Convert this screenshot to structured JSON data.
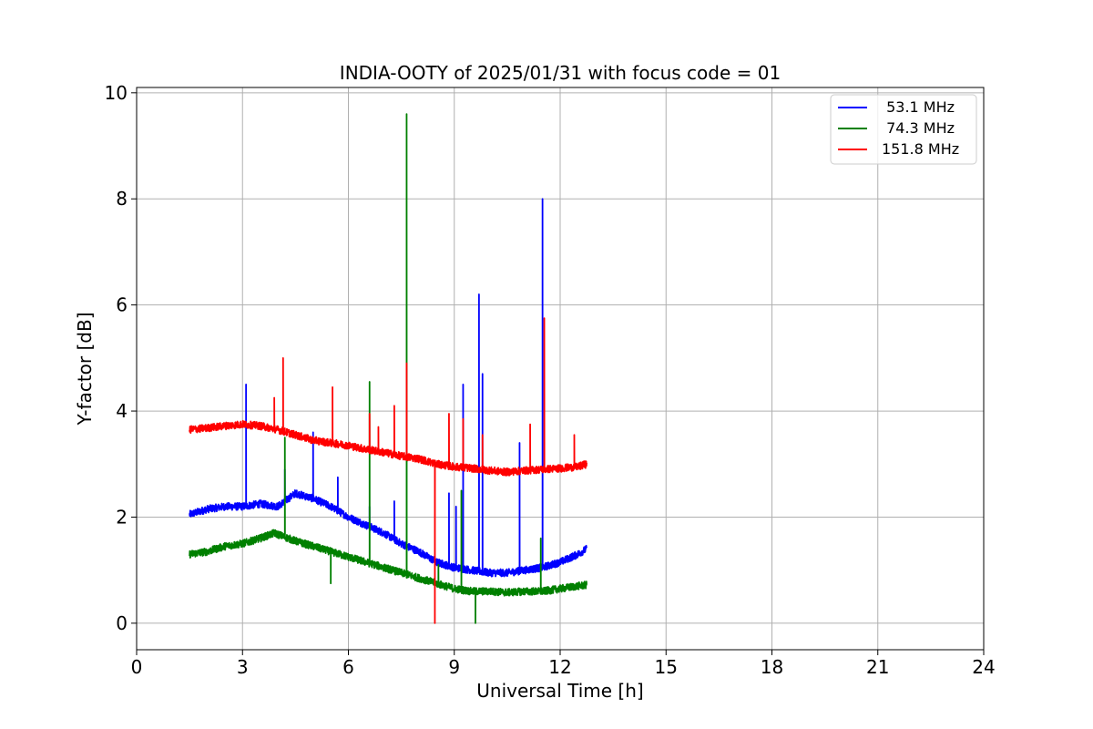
{
  "chart_data": {
    "type": "line",
    "title": "INDIA-OOTY of 2025/01/31 with focus code = 01",
    "xlabel": "Universal Time [h]",
    "ylabel": "Y-factor [dB]",
    "xlim": [
      0,
      24
    ],
    "ylim": [
      -0.5,
      10.1
    ],
    "x_ticks": [
      0,
      3,
      6,
      9,
      12,
      15,
      18,
      21,
      24
    ],
    "y_ticks": [
      0,
      2,
      4,
      6,
      8,
      10
    ],
    "grid": true,
    "legend_position": "top-right",
    "series": [
      {
        "name": " 53.1 MHz",
        "color": "#0000ff",
        "x": [
          1.5,
          2.0,
          2.5,
          3.0,
          3.5,
          4.0,
          4.5,
          5.0,
          5.5,
          6.0,
          6.5,
          7.0,
          7.5,
          8.0,
          8.5,
          9.0,
          9.5,
          10.0,
          10.5,
          11.0,
          11.5,
          12.0,
          12.5,
          12.75
        ],
        "values": [
          2.05,
          2.15,
          2.2,
          2.2,
          2.25,
          2.2,
          2.45,
          2.35,
          2.2,
          2.0,
          1.85,
          1.7,
          1.5,
          1.35,
          1.15,
          1.05,
          1.0,
          0.95,
          0.95,
          1.0,
          1.05,
          1.15,
          1.3,
          1.4
        ],
        "spikes": [
          [
            3.1,
            4.5
          ],
          [
            4.2,
            2.9
          ],
          [
            5.0,
            3.6
          ],
          [
            5.7,
            2.75
          ],
          [
            6.6,
            2.2
          ],
          [
            7.3,
            2.3
          ],
          [
            8.85,
            2.45
          ],
          [
            9.05,
            2.2
          ],
          [
            9.25,
            4.5
          ],
          [
            9.7,
            6.2
          ],
          [
            9.8,
            4.7
          ],
          [
            10.85,
            3.4
          ],
          [
            11.5,
            8.0
          ]
        ]
      },
      {
        "name": " 74.3 MHz",
        "color": "#008000",
        "x": [
          1.5,
          2.0,
          2.5,
          3.0,
          3.5,
          3.9,
          4.5,
          5.0,
          5.5,
          6.0,
          6.5,
          7.0,
          7.5,
          8.0,
          8.5,
          9.0,
          9.5,
          10.0,
          10.5,
          11.0,
          11.5,
          12.0,
          12.5,
          12.75
        ],
        "values": [
          1.3,
          1.35,
          1.45,
          1.5,
          1.6,
          1.7,
          1.55,
          1.45,
          1.35,
          1.25,
          1.15,
          1.05,
          0.95,
          0.85,
          0.75,
          0.65,
          0.6,
          0.6,
          0.58,
          0.6,
          0.6,
          0.65,
          0.7,
          0.72
        ],
        "spikes": [
          [
            4.2,
            3.5
          ],
          [
            5.5,
            0.75
          ],
          [
            6.6,
            4.55
          ],
          [
            7.65,
            9.6
          ],
          [
            8.55,
            1.1
          ],
          [
            9.2,
            2.5
          ],
          [
            9.6,
            0.0
          ],
          [
            11.45,
            1.6
          ]
        ]
      },
      {
        "name": "151.8 MHz",
        "color": "#ff0000",
        "x": [
          1.5,
          2.0,
          2.5,
          3.0,
          3.5,
          4.0,
          4.5,
          5.0,
          5.5,
          6.0,
          6.5,
          7.0,
          7.5,
          8.0,
          8.5,
          9.0,
          9.5,
          10.0,
          10.5,
          11.0,
          11.5,
          12.0,
          12.5,
          12.75
        ],
        "values": [
          3.65,
          3.68,
          3.72,
          3.75,
          3.72,
          3.65,
          3.55,
          3.45,
          3.4,
          3.35,
          3.28,
          3.22,
          3.15,
          3.1,
          3.0,
          2.95,
          2.92,
          2.88,
          2.85,
          2.88,
          2.9,
          2.92,
          2.95,
          3.0
        ],
        "spikes": [
          [
            3.9,
            4.25
          ],
          [
            4.15,
            5.0
          ],
          [
            5.55,
            4.45
          ],
          [
            6.6,
            3.95
          ],
          [
            6.85,
            3.7
          ],
          [
            7.3,
            4.1
          ],
          [
            7.65,
            4.9
          ],
          [
            8.45,
            0.0
          ],
          [
            8.85,
            3.95
          ],
          [
            9.25,
            3.85
          ],
          [
            9.8,
            3.55
          ],
          [
            11.15,
            3.75
          ],
          [
            11.55,
            5.75
          ],
          [
            12.4,
            3.55
          ]
        ]
      }
    ]
  }
}
